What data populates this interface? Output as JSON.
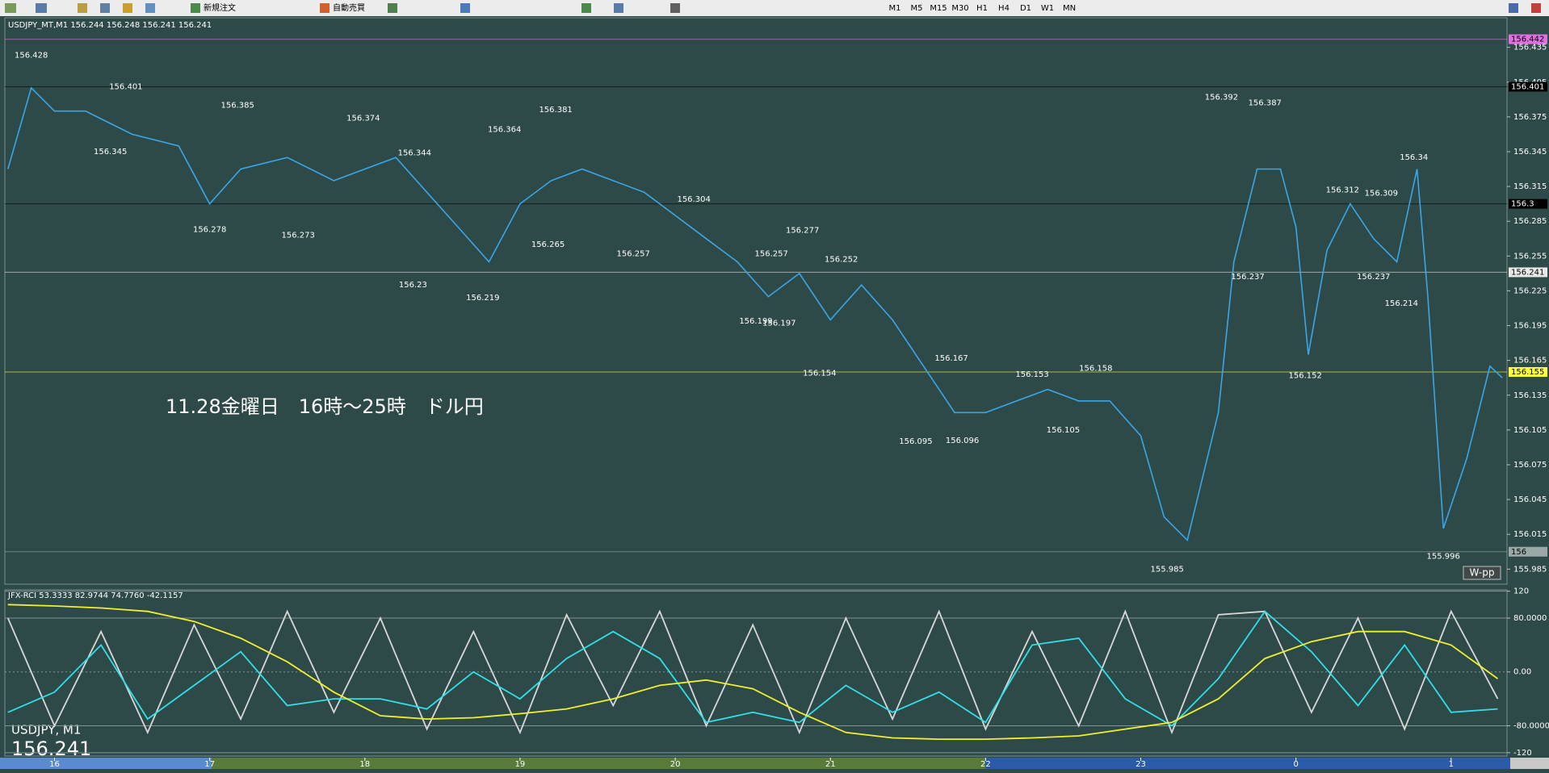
{
  "toolbar": {
    "labels": [
      "新規注文",
      "自動売買"
    ],
    "timeframes": [
      "M1",
      "M5",
      "M15",
      "M30",
      "H1",
      "H4",
      "D1",
      "W1",
      "MN"
    ]
  },
  "chart_data": [
    {
      "type": "line",
      "title": "USDJPY_MT,M1  156.244 156.248 156.241 156.241",
      "annotation": "11.28金曜日　16時～25時　ドル円",
      "symbol_label": "USDJPY, M1",
      "last_price": 156.241,
      "badge": "W-pp",
      "x": [
        15.7,
        15.85,
        16.0,
        16.2,
        16.5,
        16.8,
        17.0,
        17.2,
        17.5,
        17.8,
        18.0,
        18.2,
        18.4,
        18.6,
        18.8,
        19.0,
        19.2,
        19.4,
        19.6,
        19.8,
        20.0,
        20.2,
        20.4,
        20.6,
        20.8,
        21.0,
        21.2,
        21.4,
        21.6,
        21.8,
        22.0,
        22.2,
        22.4,
        22.6,
        22.8,
        23.0,
        23.15,
        23.3,
        23.5,
        23.6,
        23.75,
        23.9,
        24.0,
        24.08,
        24.2,
        24.35,
        24.5,
        24.65,
        24.78,
        24.85,
        24.95,
        25.1,
        25.25,
        25.33
      ],
      "series": [
        {
          "color": "#3aa6e8",
          "values": [
            156.33,
            156.4,
            156.38,
            156.38,
            156.36,
            156.35,
            156.3,
            156.33,
            156.34,
            156.32,
            156.33,
            156.34,
            156.31,
            156.28,
            156.25,
            156.3,
            156.32,
            156.33,
            156.32,
            156.31,
            156.29,
            156.27,
            156.25,
            156.22,
            156.24,
            156.2,
            156.23,
            156.2,
            156.16,
            156.12,
            156.12,
            156.13,
            156.14,
            156.13,
            156.13,
            156.1,
            156.03,
            156.01,
            156.12,
            156.25,
            156.33,
            156.33,
            156.28,
            156.17,
            156.26,
            156.3,
            156.27,
            156.25,
            156.33,
            156.22,
            156.02,
            156.08,
            156.16,
            156.15
          ]
        }
      ],
      "xlim": [
        15.68,
        25.36
      ],
      "xticks": [
        16,
        17,
        18,
        19,
        20,
        21,
        22,
        23,
        {
          "value": 24,
          "label": "0"
        },
        {
          "value": 25,
          "label": "1"
        }
      ],
      "ylim": [
        155.972,
        156.4605
      ],
      "yticks": [
        155.985,
        156.015,
        156.045,
        156.075,
        156.105,
        156.135,
        156.165,
        156.195,
        156.225,
        156.255,
        156.285,
        156.315,
        156.345,
        156.375,
        156.405,
        156.435
      ],
      "grid": false,
      "annotations": [
        {
          "x": 15.85,
          "value": 156.428
        },
        {
          "x": 16.46,
          "value": 156.401
        },
        {
          "x": 16.36,
          "value": 156.345
        },
        {
          "x": 17.18,
          "value": 156.385
        },
        {
          "x": 17.0,
          "value": 156.278
        },
        {
          "x": 17.57,
          "value": 156.273
        },
        {
          "x": 17.99,
          "value": 156.374
        },
        {
          "x": 18.32,
          "value": 156.344
        },
        {
          "x": 18.31,
          "value": 156.23
        },
        {
          "x": 18.76,
          "value": 156.219
        },
        {
          "x": 18.9,
          "value": 156.364
        },
        {
          "x": 19.23,
          "value": 156.381
        },
        {
          "x": 19.18,
          "value": 156.265
        },
        {
          "x": 19.73,
          "value": 156.257
        },
        {
          "x": 20.12,
          "value": 156.304
        },
        {
          "x": 20.82,
          "value": 156.277
        },
        {
          "x": 20.62,
          "value": 156.257
        },
        {
          "x": 21.07,
          "value": 156.252
        },
        {
          "x": 20.52,
          "value": 156.199
        },
        {
          "x": 20.67,
          "value": 156.197
        },
        {
          "x": 20.93,
          "value": 156.154
        },
        {
          "x": 21.78,
          "value": 156.167
        },
        {
          "x": 21.55,
          "value": 156.095
        },
        {
          "x": 21.85,
          "value": 156.096
        },
        {
          "x": 22.3,
          "value": 156.153
        },
        {
          "x": 22.5,
          "value": 156.105
        },
        {
          "x": 22.71,
          "value": 156.158
        },
        {
          "x": 23.17,
          "value": 155.985
        },
        {
          "x": 23.52,
          "value": 156.392
        },
        {
          "x": 23.8,
          "value": 156.387
        },
        {
          "x": 23.69,
          "value": 156.237
        },
        {
          "x": 24.06,
          "value": 156.152
        },
        {
          "x": 24.3,
          "value": 156.312
        },
        {
          "x": 24.55,
          "value": 156.309
        },
        {
          "x": 24.5,
          "value": 156.237
        },
        {
          "x": 24.68,
          "value": 156.214
        },
        {
          "x": 24.76,
          "value": 156.34
        },
        {
          "x": 24.95,
          "value": 155.996
        }
      ],
      "price_tags": [
        {
          "value": 156.442,
          "color": "#e070e0",
          "text_color": "#000000"
        },
        {
          "value": 156.401,
          "color": "#000000",
          "text_color": "#ffffff"
        },
        {
          "value": 156.3,
          "color": "#000000",
          "text_color": "#ffffff"
        },
        {
          "value": 156.241,
          "color": "#e8e8e8",
          "text_color": "#000000"
        },
        {
          "value": 156.155,
          "color": "#ffff40",
          "text_color": "#000000"
        },
        {
          "value": 156.0,
          "color": "#9aa8a8",
          "text_color": "#000000"
        }
      ]
    },
    {
      "type": "line",
      "title": "JFX-RCI 53.3333 82.9744 74.7760 -42.1157",
      "x": [
        15.7,
        16.0,
        16.3,
        16.6,
        16.9,
        17.2,
        17.5,
        17.8,
        18.1,
        18.4,
        18.7,
        19.0,
        19.3,
        19.6,
        19.9,
        20.2,
        20.5,
        20.8,
        21.1,
        21.4,
        21.7,
        22.0,
        22.3,
        22.6,
        22.9,
        23.2,
        23.5,
        23.8,
        24.1,
        24.4,
        24.7,
        25.0,
        25.3
      ],
      "series": [
        {
          "color": "#d8d8d8",
          "values": [
            80,
            -80,
            60,
            -90,
            70,
            -70,
            90,
            -60,
            80,
            -85,
            60,
            -90,
            85,
            -50,
            90,
            -80,
            70,
            -90,
            80,
            -70,
            90,
            -85,
            60,
            -80,
            90,
            -90,
            85,
            90,
            -60,
            80,
            -85,
            90,
            -40
          ]
        },
        {
          "color": "#30e0e8",
          "values": [
            -60,
            -30,
            40,
            -70,
            -20,
            30,
            -50,
            -40,
            -40,
            -55,
            0,
            -40,
            20,
            60,
            20,
            -75,
            -60,
            -75,
            -20,
            -60,
            -30,
            -75,
            40,
            50,
            -40,
            -80,
            -10,
            90,
            30,
            -50,
            40,
            -60,
            -55
          ]
        },
        {
          "color": "#f0f030",
          "values": [
            100,
            98,
            95,
            90,
            75,
            50,
            15,
            -30,
            -65,
            -70,
            -68,
            -62,
            -55,
            -40,
            -20,
            -12,
            -25,
            -60,
            -90,
            -98,
            -100,
            -100,
            -98,
            -95,
            -85,
            -75,
            -40,
            20,
            45,
            60,
            60,
            40,
            -10
          ]
        }
      ],
      "xlim": [
        15.68,
        25.36
      ],
      "ylim": [
        -125,
        122
      ],
      "yticks": [
        120,
        {
          "value": 80,
          "label": "80.0000"
        },
        {
          "value": 0,
          "label": "0.00"
        },
        {
          "value": -80,
          "label": "-80.0000"
        },
        -120
      ],
      "grid": true
    }
  ]
}
